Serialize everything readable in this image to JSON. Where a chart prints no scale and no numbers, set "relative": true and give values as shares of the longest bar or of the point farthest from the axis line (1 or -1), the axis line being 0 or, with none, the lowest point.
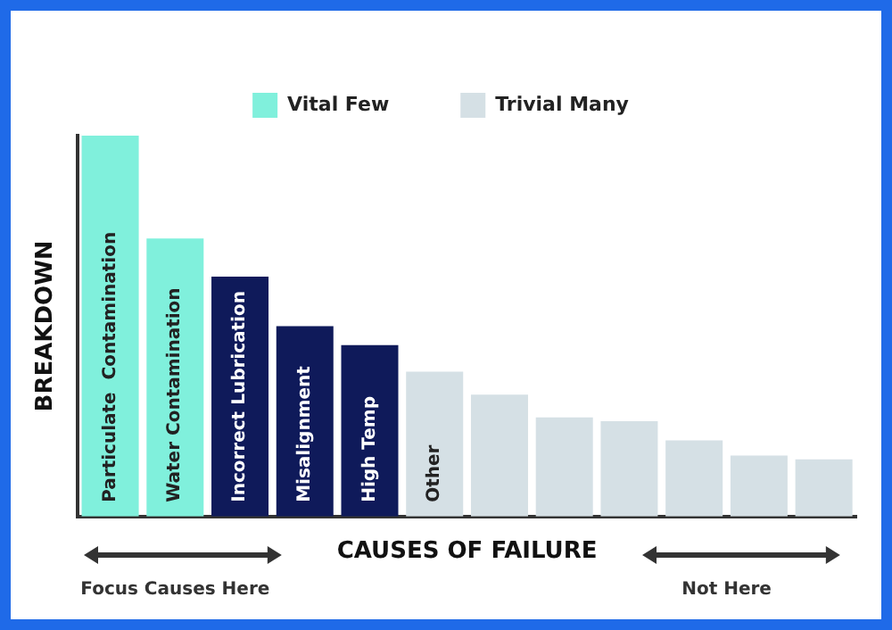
{
  "chart_data": {
    "type": "bar",
    "xlabel": "CAUSES OF FAILURE",
    "ylabel": "BREAKDOWN",
    "relative": true,
    "stacked": true,
    "legend": "top",
    "grid": false,
    "categories": [
      "Particulate  Contamination",
      "Water Contamination",
      "Incorrect Lubrication",
      "Misalignment",
      "High Temp",
      "Other",
      null,
      null,
      null,
      null,
      null,
      null
    ],
    "series": [
      {
        "name": "Vital Few",
        "color": "#80f0dc",
        "values": [
          1,
          0.73,
          null,
          null,
          null,
          null,
          null,
          null,
          null,
          null,
          null,
          null
        ]
      },
      {
        "color": "#0f1a5a",
        "values": [
          null,
          null,
          0.63,
          0.5,
          0.45,
          null,
          null,
          null,
          null,
          null,
          null,
          null
        ]
      },
      {
        "name": "Trivial Many",
        "color": "#d5e0e5",
        "values": [
          null,
          null,
          null,
          null,
          null,
          0.38,
          0.32,
          0.26,
          0.25,
          0.2,
          0.16,
          0.15
        ]
      }
    ],
    "annotations": [
      "Focus Causes Here",
      "Not Here"
    ]
  }
}
